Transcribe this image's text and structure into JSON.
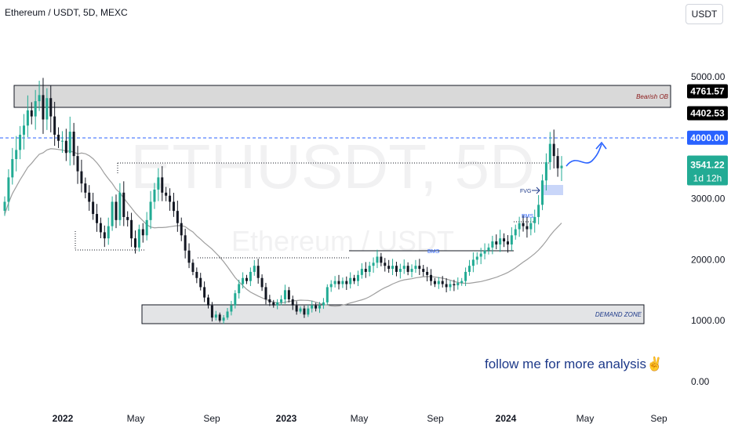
{
  "header": {
    "title": "Ethereum / USDT, 5D, MEXC",
    "currency": "USDT"
  },
  "watermark": {
    "symbol": "ETHUSDT, 5D",
    "name": "Ethereum / USDT"
  },
  "annotations": {
    "bearish_ob": "Bearish OB",
    "demand_zone": "DEMAND ZONE",
    "bms_1": "BMS",
    "bms_2": "BMS",
    "fvg": "FVG",
    "follow": "follow me for more analysis",
    "follow_emoji": "✌"
  },
  "price_tags": [
    {
      "label": "4761.57",
      "value": 4761.57,
      "bg": "#000000",
      "fg": "#ffffff"
    },
    {
      "label": "4402.53",
      "value": 4402.53,
      "bg": "#000000",
      "fg": "#ffffff"
    },
    {
      "label": "4000.00",
      "value": 4000,
      "bg": "#2962ff",
      "fg": "#ffffff"
    }
  ],
  "last_price": {
    "label": "3541.22",
    "countdown": "1d 12h",
    "value": 3541.22,
    "bg": "#22ab94",
    "fg": "#ffffff"
  },
  "colors": {
    "up": "#22ab94",
    "down": "#131722",
    "ma": "#9e9e9e",
    "dashed_line": "#2962ff",
    "zone_fill": "#d9d9d9",
    "zone_stroke": "#131722",
    "fvg_fill": "#c9d6f9"
  },
  "chart_data": {
    "type": "candlestick",
    "title": "Ethereum / USDT, 5D, MEXC",
    "y_ticks": [
      0,
      1000,
      2000,
      3000,
      4000,
      5000
    ],
    "y_tick_labels": [
      "0.00",
      "1000.00",
      "2000.00",
      "3000.00",
      "4000.00",
      "5000.00"
    ],
    "x_tick_labels": [
      "2022",
      "May",
      "Sep",
      "2023",
      "May",
      "Sep",
      "2024",
      "May",
      "Sep"
    ],
    "ylim": [
      0,
      5000
    ],
    "zones": [
      {
        "name": "Bearish OB",
        "from": 4402.53,
        "to": 4880
      },
      {
        "name": "DEMAND ZONE",
        "from": 880,
        "to": 1250
      }
    ],
    "levels": [
      {
        "name": "resistance",
        "value": 4000
      }
    ],
    "closes": [
      2950,
      3350,
      3650,
      3800,
      4050,
      4200,
      4450,
      4350,
      4600,
      4700,
      4300,
      4650,
      4350,
      4050,
      3950,
      3950,
      3750,
      4100,
      3700,
      3450,
      3250,
      3100,
      2950,
      2750,
      2600,
      2450,
      2350,
      2550,
      2950,
      2650,
      3100,
      2700,
      2650,
      2350,
      2200,
      2500,
      2400,
      2650,
      2950,
      3150,
      3350,
      3100,
      3050,
      2950,
      2800,
      2600,
      2400,
      2150,
      1950,
      1800,
      1700,
      1550,
      1380,
      1250,
      1050,
      1100,
      1000,
      1050,
      1150,
      1250,
      1450,
      1600,
      1700,
      1650,
      1800,
      1900,
      1700,
      1550,
      1350,
      1300,
      1250,
      1300,
      1350,
      1500,
      1350,
      1250,
      1150,
      1200,
      1100,
      1200,
      1250,
      1200,
      1250,
      1300,
      1550,
      1600,
      1650,
      1600,
      1650,
      1600,
      1700,
      1650,
      1750,
      1850,
      1800,
      1900,
      1950,
      2050,
      1950,
      1900,
      1850,
      1900,
      1800,
      1850,
      1900,
      1800,
      1850,
      1900,
      1850,
      1800,
      1750,
      1650,
      1600,
      1650,
      1600,
      1550,
      1600,
      1580,
      1620,
      1650,
      1800,
      1900,
      2000,
      2050,
      2100,
      2150,
      2200,
      2300,
      2250,
      2350,
      2300,
      2250,
      2400,
      2500,
      2600,
      2550,
      2500,
      2600,
      2700,
      2900,
      3300,
      3600,
      3900,
      3700,
      3500,
      3541.22
    ]
  }
}
